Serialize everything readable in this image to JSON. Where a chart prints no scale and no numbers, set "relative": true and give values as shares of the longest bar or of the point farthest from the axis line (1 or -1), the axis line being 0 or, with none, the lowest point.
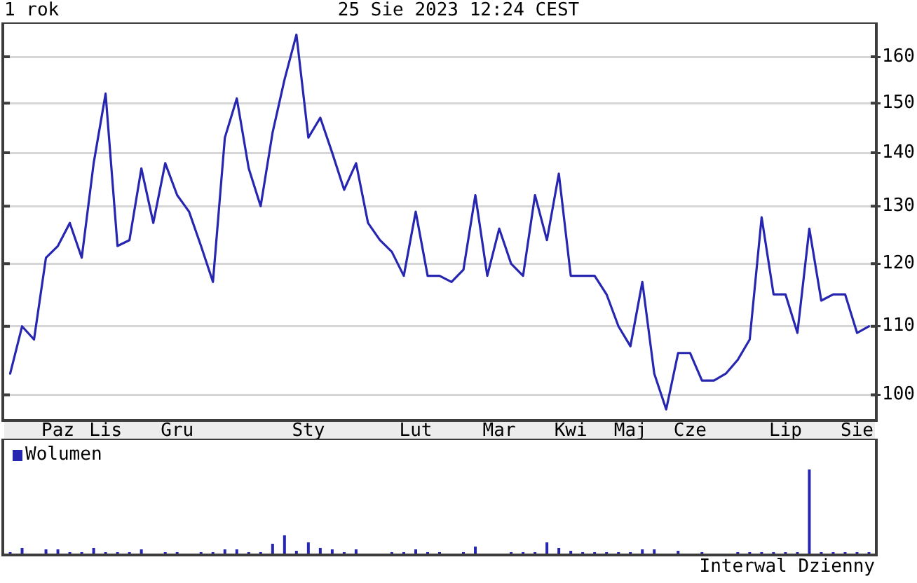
{
  "chart_data": [
    {
      "type": "line",
      "title": "1 rok",
      "subtitle": "25 Sie 2023 12:24 CEST",
      "categories": [
        null,
        null,
        null,
        null,
        "Paz",
        null,
        null,
        null,
        "Lis",
        null,
        null,
        null,
        null,
        null,
        "Gru",
        null,
        null,
        null,
        null,
        null,
        null,
        null,
        null,
        null,
        null,
        "Sty",
        null,
        null,
        null,
        null,
        null,
        null,
        null,
        null,
        "Lut",
        null,
        null,
        null,
        null,
        null,
        null,
        "Mar",
        null,
        null,
        null,
        null,
        null,
        "Kwi",
        null,
        null,
        null,
        null,
        "Maj",
        null,
        null,
        null,
        null,
        "Cze",
        null,
        null,
        null,
        null,
        null,
        null,
        null,
        "Lip",
        null,
        null,
        null,
        null,
        null,
        "Sie",
        null
      ],
      "values": [
        103,
        110,
        108,
        121,
        123,
        127,
        121,
        138,
        152,
        123,
        124,
        137,
        127,
        138,
        132,
        129,
        123,
        117,
        143,
        151,
        137,
        130,
        144,
        155,
        165,
        143,
        147,
        140,
        133,
        138,
        127,
        124,
        122,
        118,
        129,
        118,
        118,
        117,
        119,
        132,
        118,
        126,
        120,
        118,
        132,
        124,
        136,
        118,
        118,
        118,
        115,
        110,
        107,
        117,
        103,
        98,
        106,
        106,
        102,
        102,
        103,
        105,
        108,
        128,
        115,
        115,
        109,
        126,
        114,
        115,
        115,
        109,
        110
      ],
      "color": "#2626b0",
      "ylim": [
        96.7,
        167.5
      ],
      "yticks": [
        100,
        110,
        120,
        130,
        140,
        150,
        160
      ],
      "log": "y",
      "grid": "y"
    },
    {
      "type": "bar",
      "categories": [
        null,
        null,
        null,
        null,
        null,
        null,
        null,
        null,
        null,
        null,
        null,
        null,
        null,
        null,
        null,
        null,
        null,
        null,
        null,
        null,
        null,
        null,
        null,
        null,
        null,
        null,
        null,
        null,
        null,
        null,
        null,
        null,
        null,
        null,
        null,
        null,
        null,
        null,
        null,
        null,
        null,
        null,
        null,
        null,
        null,
        null,
        null,
        null,
        null,
        null,
        null,
        null,
        null,
        null,
        null,
        null,
        null,
        null,
        null,
        null,
        null,
        null,
        null,
        null,
        null,
        null,
        null,
        null,
        null,
        null,
        null,
        null,
        null
      ],
      "series": [
        {
          "name": "Wolumen",
          "color": "#2626b0",
          "values": [
            0.017,
            0.067,
            null,
            0.05,
            0.05,
            0.017,
            0.017,
            0.067,
            0.017,
            0.017,
            0.017,
            0.05,
            null,
            0.017,
            0.017,
            null,
            0.017,
            0.017,
            0.05,
            0.05,
            0.017,
            0.017,
            0.117,
            0.217,
            0.033,
            0.133,
            0.067,
            0.05,
            0.017,
            0.05,
            null,
            null,
            0.017,
            0.017,
            0.05,
            0.017,
            0.017,
            null,
            0.017,
            0.083,
            null,
            null,
            0.017,
            0.017,
            0.017,
            0.133,
            0.067,
            0.033,
            0.017,
            0.017,
            0.017,
            0.017,
            0.017,
            0.05,
            0.05,
            null,
            0.033,
            null,
            0.017,
            null,
            null,
            0.017,
            0.017,
            0.017,
            0.017,
            0.017,
            0.017,
            1,
            0.017,
            0.017,
            0.017,
            0.017,
            0.017
          ]
        }
      ],
      "relative": true,
      "tick_labels": false,
      "legend": "top left",
      "annotations": [
        "Interwal Dzienny"
      ]
    }
  ]
}
